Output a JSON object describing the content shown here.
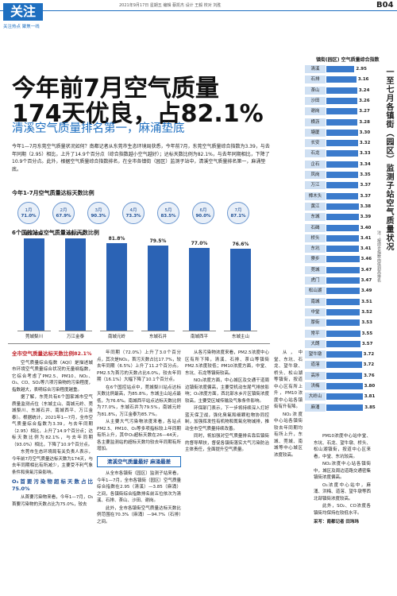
{
  "header": {
    "section": "关注",
    "tagline": "关注热点 聚焦一线",
    "dateline": "2021年9月17日 星期五 编辑 蔡凯杰 设计 王毅 校对 刘胜",
    "page": "B04"
  },
  "headline": {
    "line1": "今年前7月空气质量",
    "line2": "174天优良，占82.1%",
    "subtitle": "清溪空气质量排名第一，麻涌垫底"
  },
  "intro": "今年1—7月东莞空气质量状况如何？南都记者从东莞市生态环境局获悉，今年前7月，东莞空气质量综合指数为3.39，与去年同期（2.95）相比，上升了14.9个百分点（综合指数越小空气越好）；达标天数比例为82.1%，与去年同期相比，下降了10.9个百分点。此外，根据空气质量综合指数排名，在全市各镇街（园区）监测子站中，清溪空气质量排名第一，麻涌垫底。",
  "monthly": {
    "title": "今年1-7月空气质量达标天数比例",
    "items": [
      {
        "month": "1月",
        "ratio": "71.0%"
      },
      {
        "month": "2月",
        "ratio": "67.9%"
      },
      {
        "month": "3月",
        "ratio": "90.3%"
      },
      {
        "month": "4月",
        "ratio": "73.3%"
      },
      {
        "month": "5月",
        "ratio": "83.5%"
      },
      {
        "month": "6月",
        "ratio": "90.0%"
      },
      {
        "month": "7月",
        "ratio": "87.1%"
      }
    ]
  },
  "stations_chart": {
    "type": "bar",
    "title": "6个国控站点空气质量达标天数比例",
    "categories": [
      "莞城梨川",
      "万江金泰",
      "南城元岭",
      "东城石井",
      "南城西平",
      "东城主山"
    ],
    "values": [
      85.8,
      85.7,
      81.8,
      79.5,
      77.0,
      76.6
    ],
    "value_labels": [
      "85.8%",
      "85.7%",
      "81.8%",
      "79.5%",
      "77.0%",
      "76.6%"
    ],
    "color": "#2b63b5"
  },
  "towns_chart": {
    "type": "bar",
    "orientation": "horizontal",
    "title": "镇街(园区) 空气质量综合指数",
    "categories": [
      "清溪",
      "石排",
      "茶山",
      "沙田",
      "谢岗",
      "横沥",
      "塘厦",
      "长安",
      "石龙",
      "企石",
      "凤岗",
      "万江",
      "樟木头",
      "黄江",
      "东城",
      "石碣",
      "桥头",
      "东坑",
      "寮步",
      "莞城",
      "虎门",
      "松山湖",
      "南城",
      "中堂",
      "厚街",
      "常平",
      "大朗",
      "望牛墩",
      "道滘",
      "高埗",
      "洪梅",
      "大岭山",
      "麻涌"
    ],
    "values": [
      2.95,
      3.16,
      3.24,
      3.26,
      3.27,
      3.28,
      3.3,
      3.32,
      3.33,
      3.34,
      3.35,
      3.37,
      3.37,
      3.38,
      3.39,
      3.4,
      3.41,
      3.41,
      3.46,
      3.47,
      3.47,
      3.49,
      3.51,
      3.52,
      3.53,
      3.55,
      3.57,
      3.72,
      3.72,
      3.76,
      3.8,
      3.81,
      3.85
    ],
    "value_labels": [
      "2.95",
      "3.16",
      "3.24",
      "3.26",
      "3.27",
      "3.28",
      "3.30",
      "3.32",
      "3.33",
      "3.34",
      "3.35",
      "3.37",
      "3.37",
      "3.38",
      "3.39",
      "3.40",
      "3.41",
      "3.41",
      "3.46",
      "3.47",
      "3.47",
      "3.49",
      "3.51",
      "3.52",
      "3.53",
      "3.55",
      "3.57",
      "3.72",
      "3.72",
      "3.76",
      "3.80",
      "3.81",
      "3.85"
    ],
    "color": "#3b7bcc",
    "label_color": "#cfe0f3"
  },
  "sidebar": {
    "vertical_title": "一至七月各镇街（园区）监测子站空气质量状况",
    "note": "注：按综合指数由低到高排名"
  },
  "body": {
    "columns": [
      [
        {
          "style": "heading",
          "text": "全市空气质量达标天数比例82.1%"
        },
        {
          "style": "para",
          "text": "空气质量综合指数（AQI）是描述城市环境空气质量综合状况的无量纲指数，它综合考虑了PM2.5、PM10、NO₂、O₃、CO、SO₂等六项污染物的污染程度，指数越大，表明综合污染程度越重。"
        },
        {
          "style": "para",
          "text": "据了解，东莞共有6个国家城市空气质量监测点位（东城主山、南城元岭、莞城梨川、东城石井、南城西平、万江金泰）。根据统计，2021年1—7月，全市空气质量综合指数为3.39，与去年同期（2.95）相比，上升了14.9个百分点；达标天数比例为82.1%，与去年同期（93.0%）相比，下降了10.9个百分点。"
        },
        {
          "style": "para",
          "text": "东莞市生态环境局有关负责人表示，今年前7月空气质量达标天数为174天，与去年同期相比有所减少，主要受不利气象条件和臭氧污染影响。"
        },
        {
          "style": "heading2",
          "text": "O₃首要污染物超标天数占比75.0%"
        },
        {
          "style": "para",
          "text": "从首要污染物来看，今年1—7月，O₃首要污染物的天数占比为75.0%，较去"
        }
      ],
      [
        {
          "style": "para",
          "text": "年同期（72.0%）上升了3.0个百分点，其次是NO₂，首污天数占比17.7%，较去年同期（6.5%）上升了11.2个百分点。PM2.5为首污的天数占比6.0%，较去年同期（16.1%）大幅下降了10.1个百分点。"
        },
        {
          "style": "para",
          "text": "在6个国控站点中，莞城梨川站点达标天数比例最高，为85.8%，东城主山站点最低，为76.6%。南城西平站点达标天数比例为77.0%，东城石井为79.5%，南城元岭为81.8%，万江金泰为85.7%。"
        },
        {
          "style": "para",
          "text": "从主要大气污染物浓度来看，各站点PM2.5、PM10、O₃等多项指标较上年同期有所上升，其中O₃超标天数在26—44天，各主要监测站的超标天数均较去年同期有所增加。"
        },
        {
          "style": "boxed",
          "text": "清溪空气质量最好 麻涌最差"
        },
        {
          "style": "para",
          "text": "从全市各镇街（园区）监测子站来看，今年1—7月，全市各镇街（园区）空气质量综合指数在2.95（清溪）—3.85（麻涌）之间，各镇街综合指数排名前五位依次为清溪、石排、茶山、沙田、谢岗。"
        },
        {
          "style": "para",
          "text": "此外，全市各镇街空气质量达标天数比例范围在70.3%（麻涌）—94.7%（石排）之间。"
        }
      ],
      [
        {
          "style": "para",
          "text": "从各污染物浓度来看，PM2.5浓度中心区有所下降，清溪、石排、茶山等镇街PM2.5浓度较低；PM10浓度方面，中堂、东坑、石龙等镇街较高。"
        },
        {
          "style": "para",
          "text": "NO₂浓度方面，中心城区及交通干道周边镇街浓度偏高，主要受机动车尾气排放影响；O₃浓度方面，西北部水乡片区镇街浓度较高，主要受区域传输及气象条件影响。"
        },
        {
          "style": "para",
          "text": "环保部门表示，下一步将持续深入打好蓝天保卫战，强化臭氧和细颗粒物协同控制，加强挥发性有机物和氮氧化物减排，推动全市空气质量持续改善。"
        },
        {
          "style": "para",
          "text": "同时，将加强对空气质量排名靠后镇街的督导帮扶，督促各镇街落实大气污染防治主体责任，全面提升空气质量。"
        }
      ],
      [
        {
          "style": "para",
          "text": "从，中堂、东坑、石龙、望牛墩、桥头、松山湖等镇街，按道中心区有所上升，PM10浓度中心站各镇街有升有降。"
        },
        {
          "style": "para",
          "text": "NO₂浓度中心站各镇街较去年同期均有所上升，东城、莞城、南城等中心城区浓度较高。"
        }
      ],
      [
        {
          "style": "para",
          "text": "PM10浓度中心站中堂、东坑、石龙、望牛墩、桥头、松山湖镇街，按道中心区来看，中堂、东坑较高。"
        },
        {
          "style": "para",
          "text": "NO₂浓度中心站各镇街中，城区及周边道路交通密集镇街浓度偏高。"
        },
        {
          "style": "para",
          "text": "O₃浓度中心站中，麻涌、洪梅、道滘、望牛墩等西北部镇街浓度较高。"
        },
        {
          "style": "para",
          "text": "此外，SO₂、CO浓度各镇街均保持在较低水平。"
        },
        {
          "style": "byline",
          "text": "采写：南都记者 田玮玮"
        }
      ]
    ]
  }
}
